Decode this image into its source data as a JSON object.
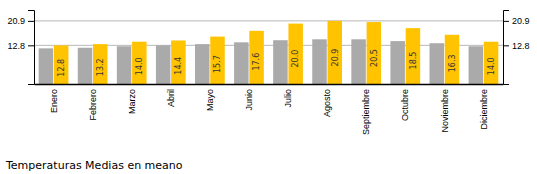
{
  "chart_data": {
    "type": "bar",
    "title": "Temperaturas Medias en meano",
    "categories": [
      "Enero",
      "Febrero",
      "Marzo",
      "Abril",
      "Mayo",
      "Junio",
      "Julio",
      "Agosto",
      "Septiembre",
      "Octubre",
      "Noviembre",
      "Diciembre"
    ],
    "series": [
      {
        "color": "#AAAAAA",
        "values": [
          11.8,
          12.0,
          12.5,
          12.8,
          13.2,
          13.8,
          14.5,
          14.8,
          14.8,
          14.2,
          13.5,
          12.5
        ]
      },
      {
        "color": "#FFC300",
        "values": [
          12.8,
          13.2,
          14.0,
          14.4,
          15.7,
          17.6,
          20.0,
          20.9,
          20.5,
          18.5,
          16.3,
          14.0
        ],
        "value_labels": [
          "12.8",
          "13.2",
          "14.0",
          "14.4",
          "15.7",
          "17.6",
          "20.0",
          "20.9",
          "20.5",
          "18.5",
          "16.3",
          "14.0"
        ],
        "data_labels": true
      }
    ],
    "ylim": [
      0,
      24.5
    ],
    "yticks": [
      12.8,
      20.9
    ],
    "y2lim": [
      0,
      24.5
    ],
    "y2ticks": [
      12.8,
      20.9
    ],
    "grid": true
  }
}
